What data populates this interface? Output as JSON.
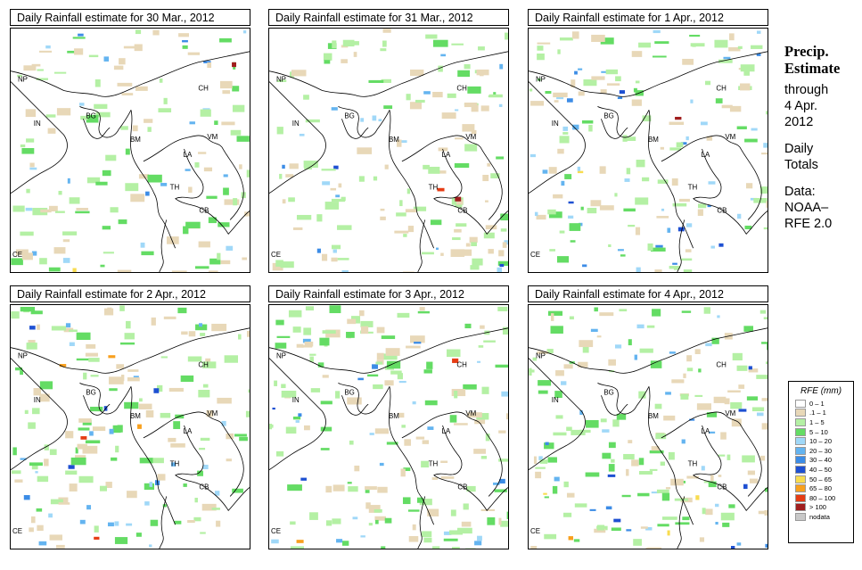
{
  "panels": [
    {
      "title": "Daily Rainfall estimate for  30 Mar., 2012"
    },
    {
      "title": "Daily Rainfall estimate for  31 Mar., 2012"
    },
    {
      "title": "Daily Rainfall estimate for  1 Apr., 2012"
    },
    {
      "title": "Daily Rainfall estimate for  2 Apr., 2012"
    },
    {
      "title": "Daily Rainfall estimate for  3 Apr., 2012"
    },
    {
      "title": "Daily Rainfall estimate for  4 Apr., 2012"
    }
  ],
  "country_labels": [
    "NP",
    "CH",
    "IN",
    "BG",
    "BM",
    "VM",
    "LA",
    "TH",
    "CB",
    "CE"
  ],
  "side": {
    "line1": "Precip.",
    "line2": "Estimate",
    "through": "through",
    "date1": "4 Apr.",
    "date2": "2012",
    "daily": "Daily",
    "totals": "Totals",
    "data": "Data:",
    "source1": "NOAA–",
    "source2": "RFE 2.0"
  },
  "legend": {
    "title": "RFE (mm)",
    "items": [
      {
        "label": "0 – 1",
        "color": "#ffffff"
      },
      {
        "label": ".1 – 1",
        "color": "#e8d8b8"
      },
      {
        "label": "1 – 5",
        "color": "#b4f0a4"
      },
      {
        "label": "5 – 10",
        "color": "#64dc64"
      },
      {
        "label": "10 – 20",
        "color": "#a0d8f8"
      },
      {
        "label": "20 – 30",
        "color": "#64b4f0"
      },
      {
        "label": "30 – 40",
        "color": "#3c8ce6"
      },
      {
        "label": "40 – 50",
        "color": "#1e50d2"
      },
      {
        "label": "50 – 65",
        "color": "#f8dc50"
      },
      {
        "label": "65 – 80",
        "color": "#f8a01e"
      },
      {
        "label": "80 – 100",
        "color": "#e63c14"
      },
      {
        "label": "> 100",
        "color": "#a01e1e"
      },
      {
        "label": "nodata",
        "color": "#c8c8c8"
      }
    ]
  }
}
